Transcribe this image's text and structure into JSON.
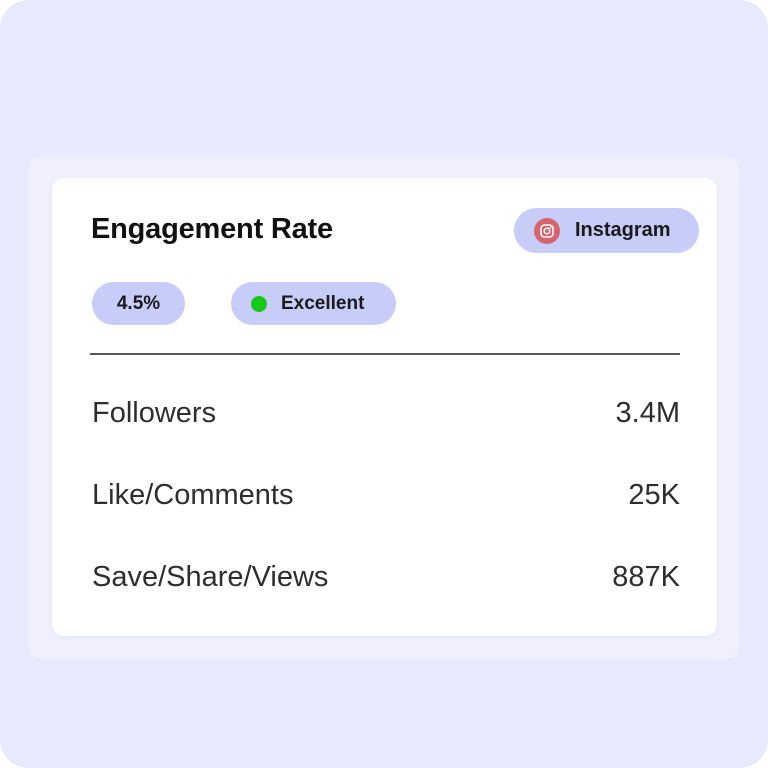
{
  "card": {
    "title": "Engagement Rate",
    "platform": {
      "label": "Instagram",
      "icon": "instagram-icon",
      "icon_color": "#d7636d"
    },
    "rate": "4.5%",
    "status": {
      "label": "Excellent",
      "dot_color": "#16c916"
    },
    "metrics": [
      {
        "label": "Followers",
        "value": "3.4M"
      },
      {
        "label": "Like/Comments",
        "value": "25K"
      },
      {
        "label": "Save/Share/Views",
        "value": "887K"
      }
    ]
  },
  "colors": {
    "background": "#e8e9fc",
    "chip": "#c8ccf8",
    "card": "#ffffff"
  }
}
